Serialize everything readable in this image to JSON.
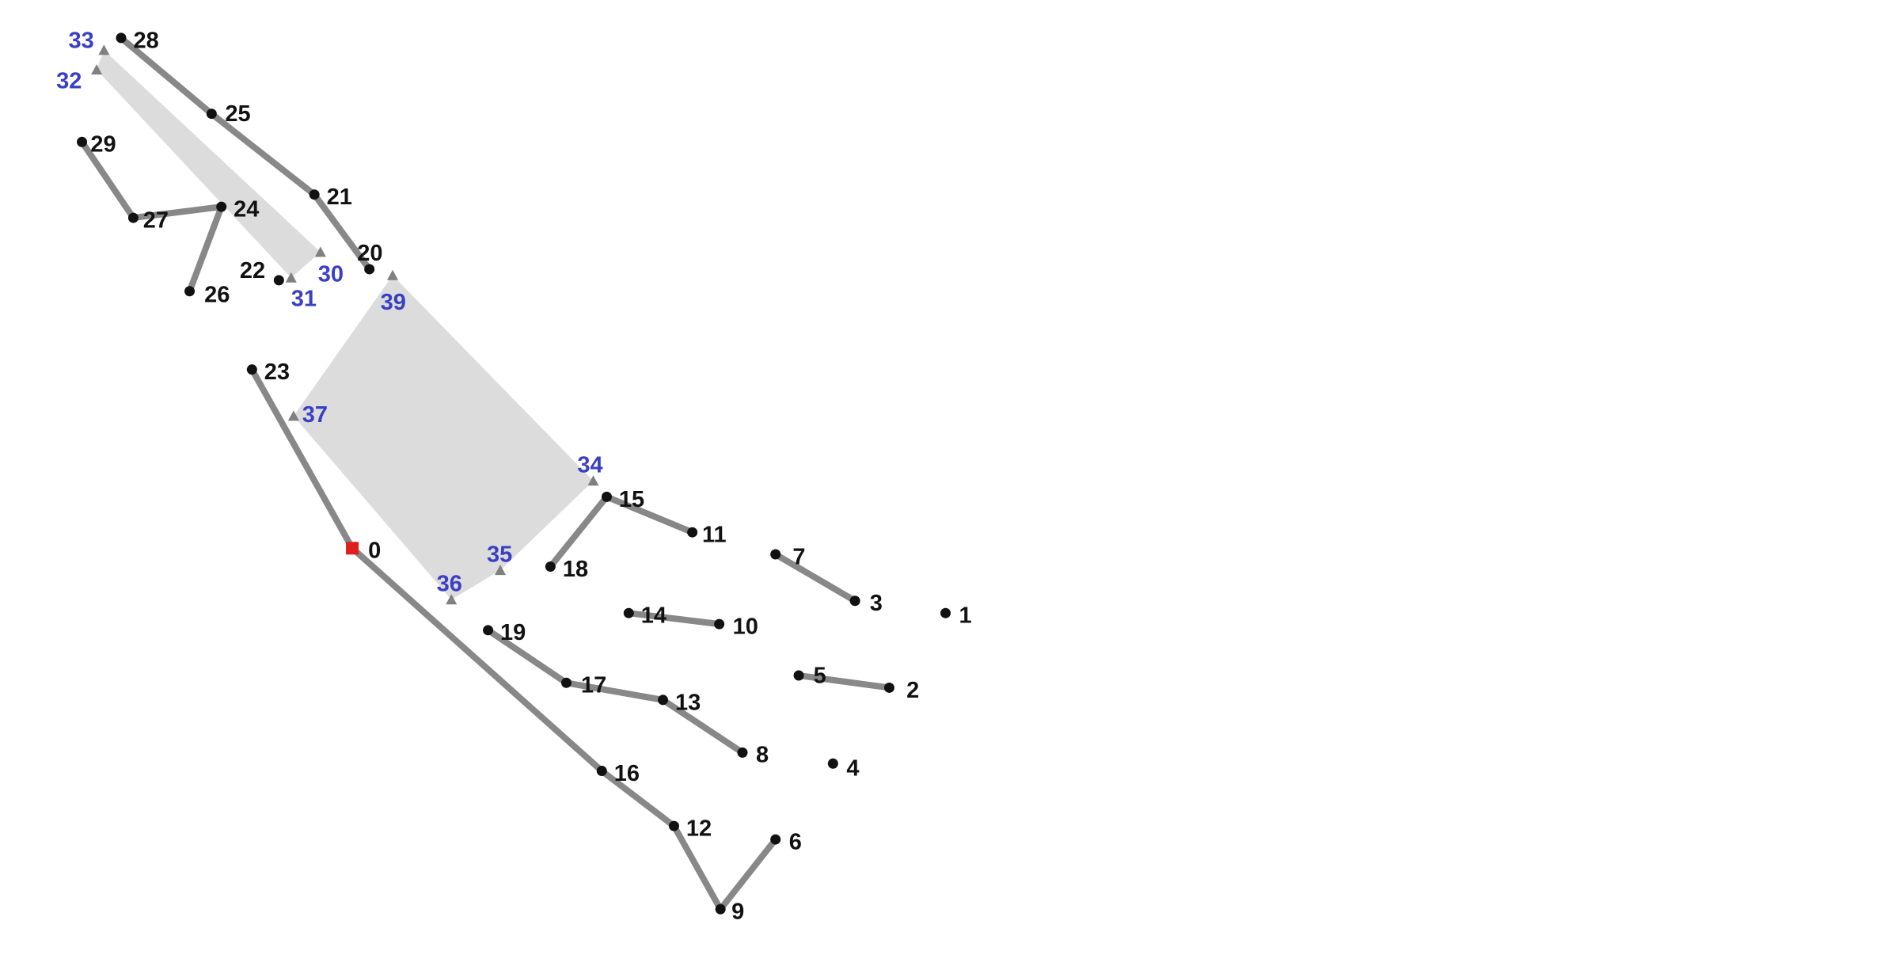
{
  "colors": {
    "edge": "#888888",
    "node": "#111111",
    "triangle": "#808080",
    "polygon_fill": "#dcdcdc",
    "node_label": "#111111",
    "triangle_label": "#3a3fc4",
    "start": "#e01e1e"
  },
  "start_node": "0",
  "nodes": [
    {
      "id": "0",
      "label": "0"
    },
    {
      "id": "1",
      "label": "1"
    },
    {
      "id": "2",
      "label": "2"
    },
    {
      "id": "3",
      "label": "3"
    },
    {
      "id": "4",
      "label": "4"
    },
    {
      "id": "5",
      "label": "5"
    },
    {
      "id": "6",
      "label": "6"
    },
    {
      "id": "7",
      "label": "7"
    },
    {
      "id": "8",
      "label": "8"
    },
    {
      "id": "9",
      "label": "9"
    },
    {
      "id": "10",
      "label": "10"
    },
    {
      "id": "11",
      "label": "11"
    },
    {
      "id": "12",
      "label": "12"
    },
    {
      "id": "13",
      "label": "13"
    },
    {
      "id": "14",
      "label": "14"
    },
    {
      "id": "15",
      "label": "15"
    },
    {
      "id": "16",
      "label": "16"
    },
    {
      "id": "17",
      "label": "17"
    },
    {
      "id": "18",
      "label": "18"
    },
    {
      "id": "19",
      "label": "19"
    },
    {
      "id": "20",
      "label": "20"
    },
    {
      "id": "21",
      "label": "21"
    },
    {
      "id": "22",
      "label": "22"
    },
    {
      "id": "23",
      "label": "23"
    },
    {
      "id": "24",
      "label": "24"
    },
    {
      "id": "25",
      "label": "25"
    },
    {
      "id": "26",
      "label": "26"
    },
    {
      "id": "27",
      "label": "27"
    },
    {
      "id": "28",
      "label": "28"
    },
    {
      "id": "29",
      "label": "29"
    }
  ],
  "triangle_markers": [
    {
      "id": "30",
      "label": "30"
    },
    {
      "id": "31",
      "label": "31"
    },
    {
      "id": "32",
      "label": "32"
    },
    {
      "id": "33",
      "label": "33"
    },
    {
      "id": "34",
      "label": "34"
    },
    {
      "id": "35",
      "label": "35"
    },
    {
      "id": "36",
      "label": "36"
    },
    {
      "id": "37",
      "label": "37"
    },
    {
      "id": "39",
      "label": "39"
    }
  ],
  "edges": [
    [
      "23",
      "0"
    ],
    [
      "0",
      "16"
    ],
    [
      "16",
      "12"
    ],
    [
      "12",
      "9"
    ],
    [
      "9",
      "6"
    ],
    [
      "19",
      "17"
    ],
    [
      "17",
      "13"
    ],
    [
      "13",
      "8"
    ],
    [
      "18",
      "15"
    ],
    [
      "15",
      "11"
    ],
    [
      "14",
      "10"
    ],
    [
      "7",
      "3"
    ],
    [
      "5",
      "2"
    ],
    [
      "28",
      "25"
    ],
    [
      "25",
      "21"
    ],
    [
      "21",
      "20"
    ],
    [
      "29",
      "27"
    ],
    [
      "27",
      "24"
    ],
    [
      "24",
      "26"
    ]
  ],
  "polygons": [
    [
      "33",
      "32",
      "31",
      "30"
    ],
    [
      "39",
      "37",
      "36",
      "35",
      "34"
    ]
  ]
}
